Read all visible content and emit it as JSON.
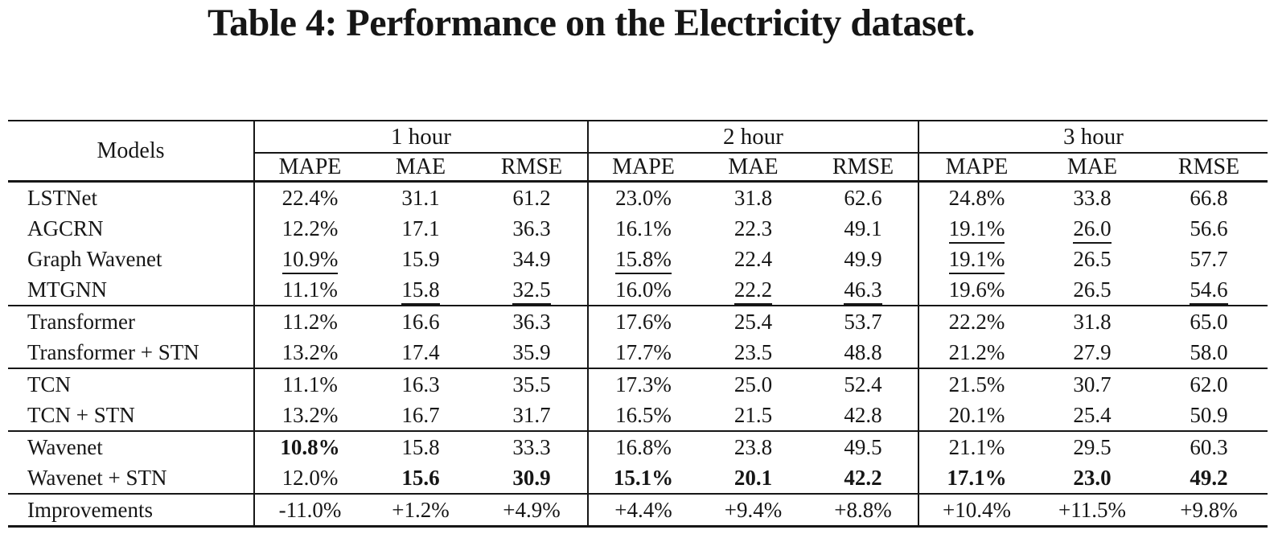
{
  "title": "Table 4: Performance on the Electricity dataset.",
  "table": {
    "models_header": "Models",
    "column_groups": [
      {
        "label": "1 hour",
        "columns": [
          "MAPE",
          "MAE",
          "RMSE"
        ]
      },
      {
        "label": "2 hour",
        "columns": [
          "MAPE",
          "MAE",
          "RMSE"
        ]
      },
      {
        "label": "3 hour",
        "columns": [
          "MAPE",
          "MAE",
          "RMSE"
        ]
      }
    ],
    "style_legend": {
      "": "plain",
      "u": "underlined (second best)",
      "b": "bold (best)"
    },
    "rows": [
      {
        "model": "LSTNet",
        "section_end": false,
        "cells": [
          {
            "v": "22.4%",
            "s": ""
          },
          {
            "v": "31.1",
            "s": ""
          },
          {
            "v": "61.2",
            "s": ""
          },
          {
            "v": "23.0%",
            "s": ""
          },
          {
            "v": "31.8",
            "s": ""
          },
          {
            "v": "62.6",
            "s": ""
          },
          {
            "v": "24.8%",
            "s": ""
          },
          {
            "v": "33.8",
            "s": ""
          },
          {
            "v": "66.8",
            "s": ""
          }
        ]
      },
      {
        "model": "AGCRN",
        "section_end": false,
        "cells": [
          {
            "v": "12.2%",
            "s": ""
          },
          {
            "v": "17.1",
            "s": ""
          },
          {
            "v": "36.3",
            "s": ""
          },
          {
            "v": "16.1%",
            "s": ""
          },
          {
            "v": "22.3",
            "s": ""
          },
          {
            "v": "49.1",
            "s": ""
          },
          {
            "v": "19.1%",
            "s": "u"
          },
          {
            "v": "26.0",
            "s": "u"
          },
          {
            "v": "56.6",
            "s": ""
          }
        ]
      },
      {
        "model": "Graph Wavenet",
        "section_end": false,
        "cells": [
          {
            "v": "10.9%",
            "s": "u"
          },
          {
            "v": "15.9",
            "s": ""
          },
          {
            "v": "34.9",
            "s": ""
          },
          {
            "v": "15.8%",
            "s": "u"
          },
          {
            "v": "22.4",
            "s": ""
          },
          {
            "v": "49.9",
            "s": ""
          },
          {
            "v": "19.1%",
            "s": "u"
          },
          {
            "v": "26.5",
            "s": ""
          },
          {
            "v": "57.7",
            "s": ""
          }
        ]
      },
      {
        "model": "MTGNN",
        "section_end": true,
        "cells": [
          {
            "v": "11.1%",
            "s": ""
          },
          {
            "v": "15.8",
            "s": "u"
          },
          {
            "v": "32.5",
            "s": "u"
          },
          {
            "v": "16.0%",
            "s": ""
          },
          {
            "v": "22.2",
            "s": "u"
          },
          {
            "v": "46.3",
            "s": "u"
          },
          {
            "v": "19.6%",
            "s": ""
          },
          {
            "v": "26.5",
            "s": ""
          },
          {
            "v": "54.6",
            "s": "u"
          }
        ]
      },
      {
        "model": "Transformer",
        "section_end": false,
        "cells": [
          {
            "v": "11.2%",
            "s": ""
          },
          {
            "v": "16.6",
            "s": ""
          },
          {
            "v": "36.3",
            "s": ""
          },
          {
            "v": "17.6%",
            "s": ""
          },
          {
            "v": "25.4",
            "s": ""
          },
          {
            "v": "53.7",
            "s": ""
          },
          {
            "v": "22.2%",
            "s": ""
          },
          {
            "v": "31.8",
            "s": ""
          },
          {
            "v": "65.0",
            "s": ""
          }
        ]
      },
      {
        "model": "Transformer + STN",
        "section_end": true,
        "cells": [
          {
            "v": "13.2%",
            "s": ""
          },
          {
            "v": "17.4",
            "s": ""
          },
          {
            "v": "35.9",
            "s": ""
          },
          {
            "v": "17.7%",
            "s": ""
          },
          {
            "v": "23.5",
            "s": ""
          },
          {
            "v": "48.8",
            "s": ""
          },
          {
            "v": "21.2%",
            "s": ""
          },
          {
            "v": "27.9",
            "s": ""
          },
          {
            "v": "58.0",
            "s": ""
          }
        ]
      },
      {
        "model": "TCN",
        "section_end": false,
        "cells": [
          {
            "v": "11.1%",
            "s": ""
          },
          {
            "v": "16.3",
            "s": ""
          },
          {
            "v": "35.5",
            "s": ""
          },
          {
            "v": "17.3%",
            "s": ""
          },
          {
            "v": "25.0",
            "s": ""
          },
          {
            "v": "52.4",
            "s": ""
          },
          {
            "v": "21.5%",
            "s": ""
          },
          {
            "v": "30.7",
            "s": ""
          },
          {
            "v": "62.0",
            "s": ""
          }
        ]
      },
      {
        "model": "TCN + STN",
        "section_end": true,
        "cells": [
          {
            "v": "13.2%",
            "s": ""
          },
          {
            "v": "16.7",
            "s": ""
          },
          {
            "v": "31.7",
            "s": ""
          },
          {
            "v": "16.5%",
            "s": ""
          },
          {
            "v": "21.5",
            "s": ""
          },
          {
            "v": "42.8",
            "s": ""
          },
          {
            "v": "20.1%",
            "s": ""
          },
          {
            "v": "25.4",
            "s": ""
          },
          {
            "v": "50.9",
            "s": ""
          }
        ]
      },
      {
        "model": "Wavenet",
        "section_end": false,
        "cells": [
          {
            "v": "10.8%",
            "s": "b"
          },
          {
            "v": "15.8",
            "s": ""
          },
          {
            "v": "33.3",
            "s": ""
          },
          {
            "v": "16.8%",
            "s": ""
          },
          {
            "v": "23.8",
            "s": ""
          },
          {
            "v": "49.5",
            "s": ""
          },
          {
            "v": "21.1%",
            "s": ""
          },
          {
            "v": "29.5",
            "s": ""
          },
          {
            "v": "60.3",
            "s": ""
          }
        ]
      },
      {
        "model": "Wavenet + STN",
        "section_end": true,
        "cells": [
          {
            "v": "12.0%",
            "s": ""
          },
          {
            "v": "15.6",
            "s": "b"
          },
          {
            "v": "30.9",
            "s": "b"
          },
          {
            "v": "15.1%",
            "s": "b"
          },
          {
            "v": "20.1",
            "s": "b"
          },
          {
            "v": "42.2",
            "s": "b"
          },
          {
            "v": "17.1%",
            "s": "b"
          },
          {
            "v": "23.0",
            "s": "b"
          },
          {
            "v": "49.2",
            "s": "b"
          }
        ]
      },
      {
        "model": "Improvements",
        "section_end": false,
        "cells": [
          {
            "v": "-11.0%",
            "s": ""
          },
          {
            "v": "+1.2%",
            "s": ""
          },
          {
            "v": "+4.9%",
            "s": ""
          },
          {
            "v": "+4.4%",
            "s": ""
          },
          {
            "v": "+9.4%",
            "s": ""
          },
          {
            "v": "+8.8%",
            "s": ""
          },
          {
            "v": "+10.4%",
            "s": ""
          },
          {
            "v": "+11.5%",
            "s": ""
          },
          {
            "v": "+9.8%",
            "s": ""
          }
        ]
      }
    ]
  }
}
